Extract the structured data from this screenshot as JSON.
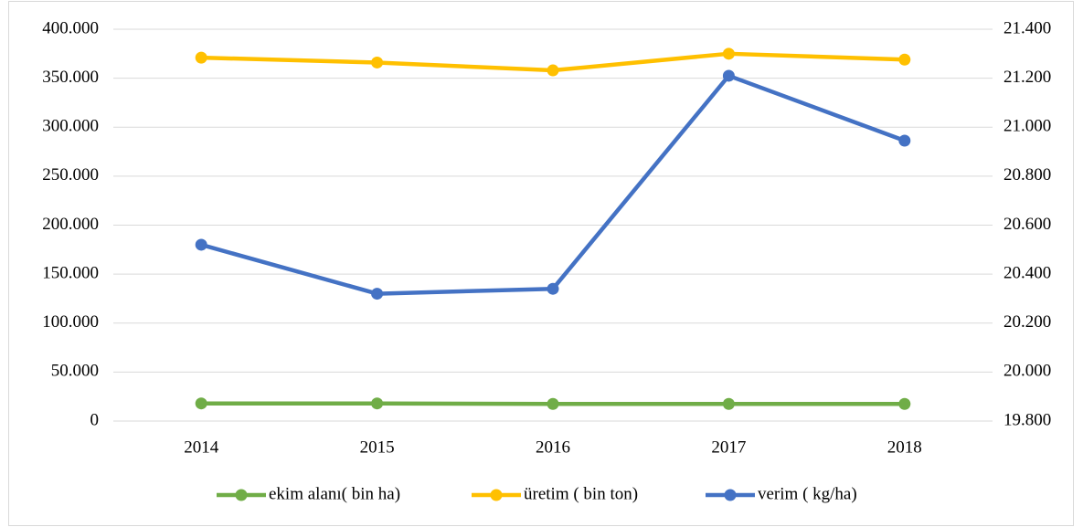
{
  "chart_data": {
    "type": "line",
    "categories": [
      "2014",
      "2015",
      "2016",
      "2017",
      "2018"
    ],
    "series": [
      {
        "name": "ekim alanı( bin ha)",
        "color": "#70ad47",
        "values": [
          18000,
          18000,
          17500,
          17500,
          17500
        ]
      },
      {
        "name": "üretim ( bin ton)",
        "color": "#ffc000",
        "values": [
          371000,
          366000,
          358000,
          375000,
          369000
        ]
      },
      {
        "name": "verim ( kg/ha)",
        "color": "#4472c4",
        "axis": "y2",
        "values": [
          20520,
          20320,
          20340,
          21210,
          20945
        ]
      }
    ],
    "ylim": [
      0,
      400000
    ],
    "yticks": [
      0,
      {
        "value": 50000,
        "label": "50.000"
      },
      {
        "value": 100000,
        "label": "100.000"
      },
      {
        "value": 150000,
        "label": "150.000"
      },
      {
        "value": 200000,
        "label": "200.000"
      },
      {
        "value": 250000,
        "label": "250.000"
      },
      {
        "value": 300000,
        "label": "300.000"
      },
      {
        "value": 350000,
        "label": "350.000"
      },
      {
        "value": 400000,
        "label": "400.000"
      }
    ],
    "y2lim": [
      19800,
      21400
    ],
    "y2ticks": [
      {
        "value": 19800,
        "label": "19.800"
      },
      {
        "value": 20000,
        "label": "20.000"
      },
      {
        "value": 20200,
        "label": "20.200"
      },
      {
        "value": 20400,
        "label": "20.400"
      },
      {
        "value": 20600,
        "label": "20.600"
      },
      {
        "value": 20800,
        "label": "20.800"
      },
      {
        "value": 21000,
        "label": "21.000"
      },
      {
        "value": 21200,
        "label": "21.200"
      },
      {
        "value": 21400,
        "label": "21.400"
      }
    ],
    "grid": true,
    "legend": "bottom"
  }
}
